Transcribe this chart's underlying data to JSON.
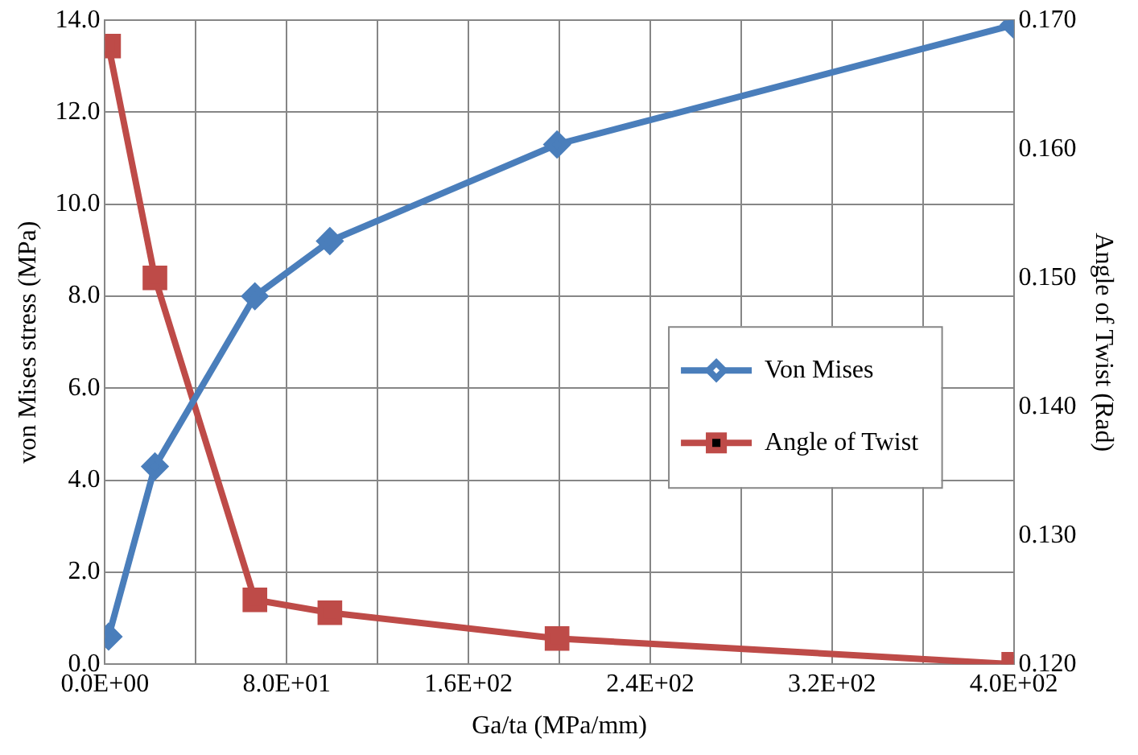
{
  "chart_data": {
    "type": "line",
    "xlabel": "Ga/ta (MPa/mm)",
    "ylabel": "von Mises stress (MPa)",
    "y2label": "Angle of Twist (Rad)",
    "x": [
      1.6,
      22,
      66,
      99,
      199,
      400
    ],
    "series": [
      {
        "name": "Von Mises",
        "color": "#4a7ebb",
        "values": [
          0.6,
          4.3,
          8.0,
          9.2,
          11.3,
          13.9
        ],
        "marker": "diamond"
      },
      {
        "name": "Angle of Twist",
        "color": "#be4b48",
        "values": [
          0.168,
          0.15,
          0.125,
          0.124,
          0.122,
          0.12
        ],
        "marker": "square",
        "axis": "y2"
      }
    ],
    "xlim": [
      0,
      400
    ],
    "xticks": [
      {
        "value": 0,
        "label": "0.0E+00"
      },
      {
        "value": 40,
        "label": null
      },
      {
        "value": 80,
        "label": "8.0E+01"
      },
      {
        "value": 120,
        "label": null
      },
      {
        "value": 160,
        "label": "1.6E+02"
      },
      {
        "value": 200,
        "label": null
      },
      {
        "value": 240,
        "label": "2.4E+02"
      },
      {
        "value": 280,
        "label": null
      },
      {
        "value": 320,
        "label": "3.2E+02"
      },
      {
        "value": 360,
        "label": null
      },
      {
        "value": 400,
        "label": "4.0E+02"
      }
    ],
    "ylim": [
      0,
      14
    ],
    "yticks": [
      {
        "value": 0,
        "label": "0.0"
      },
      {
        "value": 2,
        "label": "2.0"
      },
      {
        "value": 4,
        "label": "4.0"
      },
      {
        "value": 6,
        "label": "6.0"
      },
      {
        "value": 8,
        "label": "8.0"
      },
      {
        "value": 10,
        "label": "10.0"
      },
      {
        "value": 12,
        "label": "12.0"
      },
      {
        "value": 14,
        "label": "14.0"
      }
    ],
    "y2lim": [
      0.12,
      0.17
    ],
    "y2ticks": [
      {
        "value": 0.12,
        "label": "0.120"
      },
      {
        "value": 0.13,
        "label": "0.130"
      },
      {
        "value": 0.14,
        "label": "0.140"
      },
      {
        "value": 0.15,
        "label": "0.150"
      },
      {
        "value": 0.16,
        "label": "0.160"
      },
      {
        "value": 0.17,
        "label": "0.170"
      }
    ],
    "grid": true,
    "legend": "right",
    "line_style": "solid"
  }
}
